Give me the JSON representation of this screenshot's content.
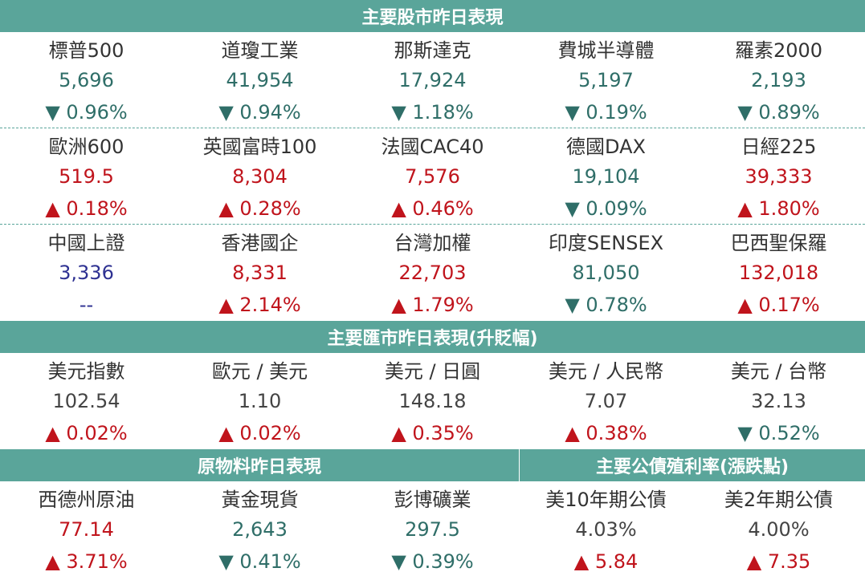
{
  "stocks": {
    "title": "主要股市昨日表現",
    "groups": [
      [
        {
          "name": "標普500",
          "value": "5,696",
          "change": "▼ 0.96%",
          "dir": "down"
        },
        {
          "name": "道瓊工業",
          "value": "41,954",
          "change": "▼ 0.94%",
          "dir": "down"
        },
        {
          "name": "那斯達克",
          "value": "17,924",
          "change": "▼ 1.18%",
          "dir": "down"
        },
        {
          "name": "費城半導體",
          "value": "5,197",
          "change": "▼ 0.19%",
          "dir": "down"
        },
        {
          "name": "羅素2000",
          "value": "2,193",
          "change": "▼ 0.89%",
          "dir": "down"
        }
      ],
      [
        {
          "name": "歐洲600",
          "value": "519.5",
          "change": "▲ 0.18%",
          "dir": "up"
        },
        {
          "name": "英國富時100",
          "value": "8,304",
          "change": "▲ 0.28%",
          "dir": "up"
        },
        {
          "name": "法國CAC40",
          "value": "7,576",
          "change": "▲ 0.46%",
          "dir": "up"
        },
        {
          "name": "德國DAX",
          "value": "19,104",
          "change": "▼ 0.09%",
          "dir": "down"
        },
        {
          "name": "日經225",
          "value": "39,333",
          "change": "▲ 1.80%",
          "dir": "up"
        }
      ],
      [
        {
          "name": "中國上證",
          "value": "3,336",
          "change": "--",
          "dir": "flat"
        },
        {
          "name": "香港國企",
          "value": "8,331",
          "change": "▲ 2.14%",
          "dir": "up"
        },
        {
          "name": "台灣加權",
          "value": "22,703",
          "change": "▲ 1.79%",
          "dir": "up"
        },
        {
          "name": "印度SENSEX",
          "value": "81,050",
          "change": "▼ 0.78%",
          "dir": "down"
        },
        {
          "name": "巴西聖保羅",
          "value": "132,018",
          "change": "▲ 0.17%",
          "dir": "up"
        }
      ]
    ]
  },
  "fx": {
    "title": "主要匯市昨日表現(升貶幅)",
    "items": [
      {
        "name": "美元指數",
        "value": "102.54",
        "change": "▲ 0.02%",
        "dir": "up"
      },
      {
        "name": "歐元 / 美元",
        "value": "1.10",
        "change": "▲ 0.02%",
        "dir": "up"
      },
      {
        "name": "美元 / 日圓",
        "value": "148.18",
        "change": "▲ 0.35%",
        "dir": "up"
      },
      {
        "name": "美元 / 人民幣",
        "value": "7.07",
        "change": "▲ 0.38%",
        "dir": "up"
      },
      {
        "name": "美元 / 台幣",
        "value": "32.13",
        "change": "▼ 0.52%",
        "dir": "down"
      }
    ]
  },
  "commodities": {
    "title": "原物料昨日表現",
    "items": [
      {
        "name": "西德州原油",
        "value": "77.14",
        "change": "▲ 3.71%",
        "dir": "up"
      },
      {
        "name": "黃金現貨",
        "value": "2,643",
        "change": "▼ 0.41%",
        "dir": "down"
      },
      {
        "name": "彭博礦業",
        "value": "297.5",
        "change": "▼ 0.39%",
        "dir": "down"
      }
    ]
  },
  "bonds": {
    "title": "主要公債殖利率(漲跌點)",
    "items": [
      {
        "name": "美10年期公債",
        "value": "4.03%",
        "change": "▲ 5.84",
        "dir": "up"
      },
      {
        "name": "美2年期公債",
        "value": "4.00%",
        "change": "▲ 7.35",
        "dir": "up"
      }
    ]
  },
  "colors": {
    "header_bg": "#5aa59a",
    "up": "#c0141c",
    "down": "#2f6e68",
    "shanghai_value": "#2e3192"
  }
}
